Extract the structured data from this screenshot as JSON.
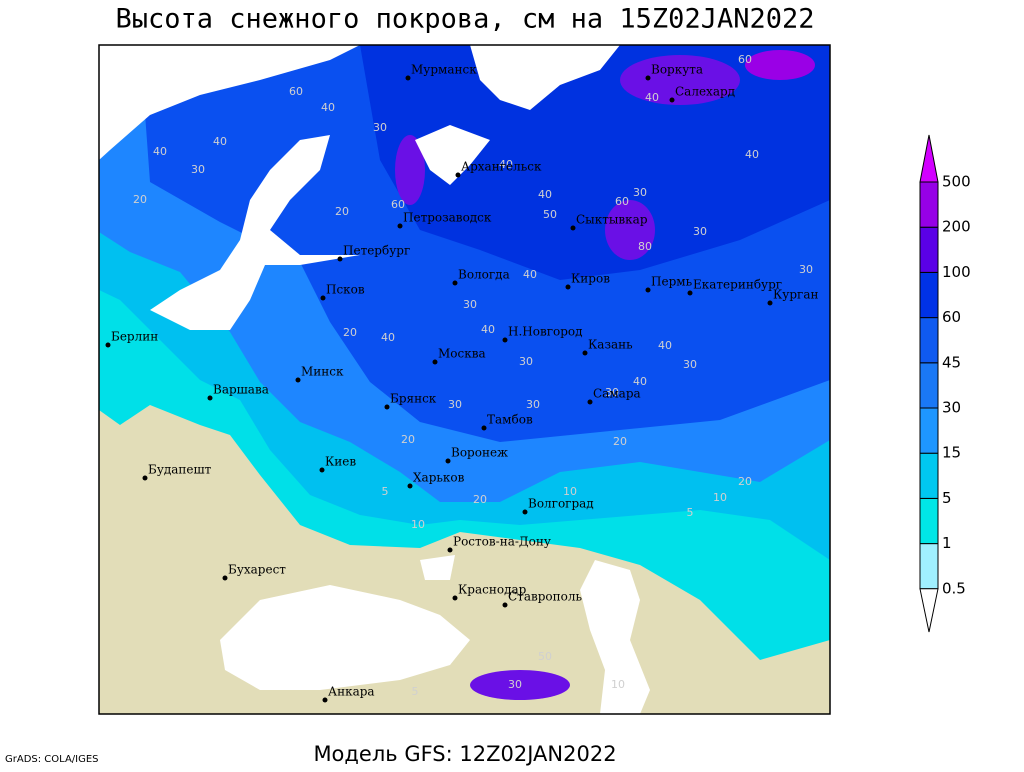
{
  "title": "Высота снежного покрова, см на 15Z02JAN2022",
  "footer": {
    "model": "Модель GFS: 12Z02JAN2022",
    "credit": "GrADS: COLA/IGES"
  },
  "cities": [
    "Мурманск",
    "Воркута",
    "Салехард",
    "Архангельск",
    "Петрозаводск",
    "Сыктывкар",
    "Петербург",
    "Вологда",
    "Киров",
    "Пермь",
    "Екатеринбург",
    "Курган",
    "Псков",
    "Берлин",
    "Н.Новгород",
    "Москва",
    "Казань",
    "Минск",
    "Варшава",
    "Брянск",
    "Самара",
    "Тамбов",
    "Воронеж",
    "Киев",
    "Будапешт",
    "Харьков",
    "Волгоград",
    "Ростов-на-Дону",
    "Бухарест",
    "Краснодар",
    "Ставрополь",
    "Анкара"
  ],
  "contour_labels": [
    60,
    40,
    40,
    30,
    30,
    20,
    40,
    20,
    60,
    30,
    40,
    40,
    60,
    40,
    40,
    30,
    30,
    40,
    20,
    40,
    40,
    30,
    30,
    30,
    30,
    20,
    20,
    5,
    10,
    10,
    20,
    5,
    50,
    30,
    10,
    5,
    60,
    40,
    80,
    30,
    50,
    20,
    10,
    40,
    30
  ],
  "legend": {
    "levels": [
      0.5,
      1,
      5,
      15,
      30,
      45,
      60,
      100,
      200,
      500
    ],
    "colors": [
      "#ffffff",
      "#a0f0ff",
      "#00e6e6",
      "#00c8f0",
      "#1e96ff",
      "#1a78f5",
      "#0f5af0",
      "#0032e6",
      "#5a00e6",
      "#9600e6",
      "#d200ff"
    ]
  }
}
